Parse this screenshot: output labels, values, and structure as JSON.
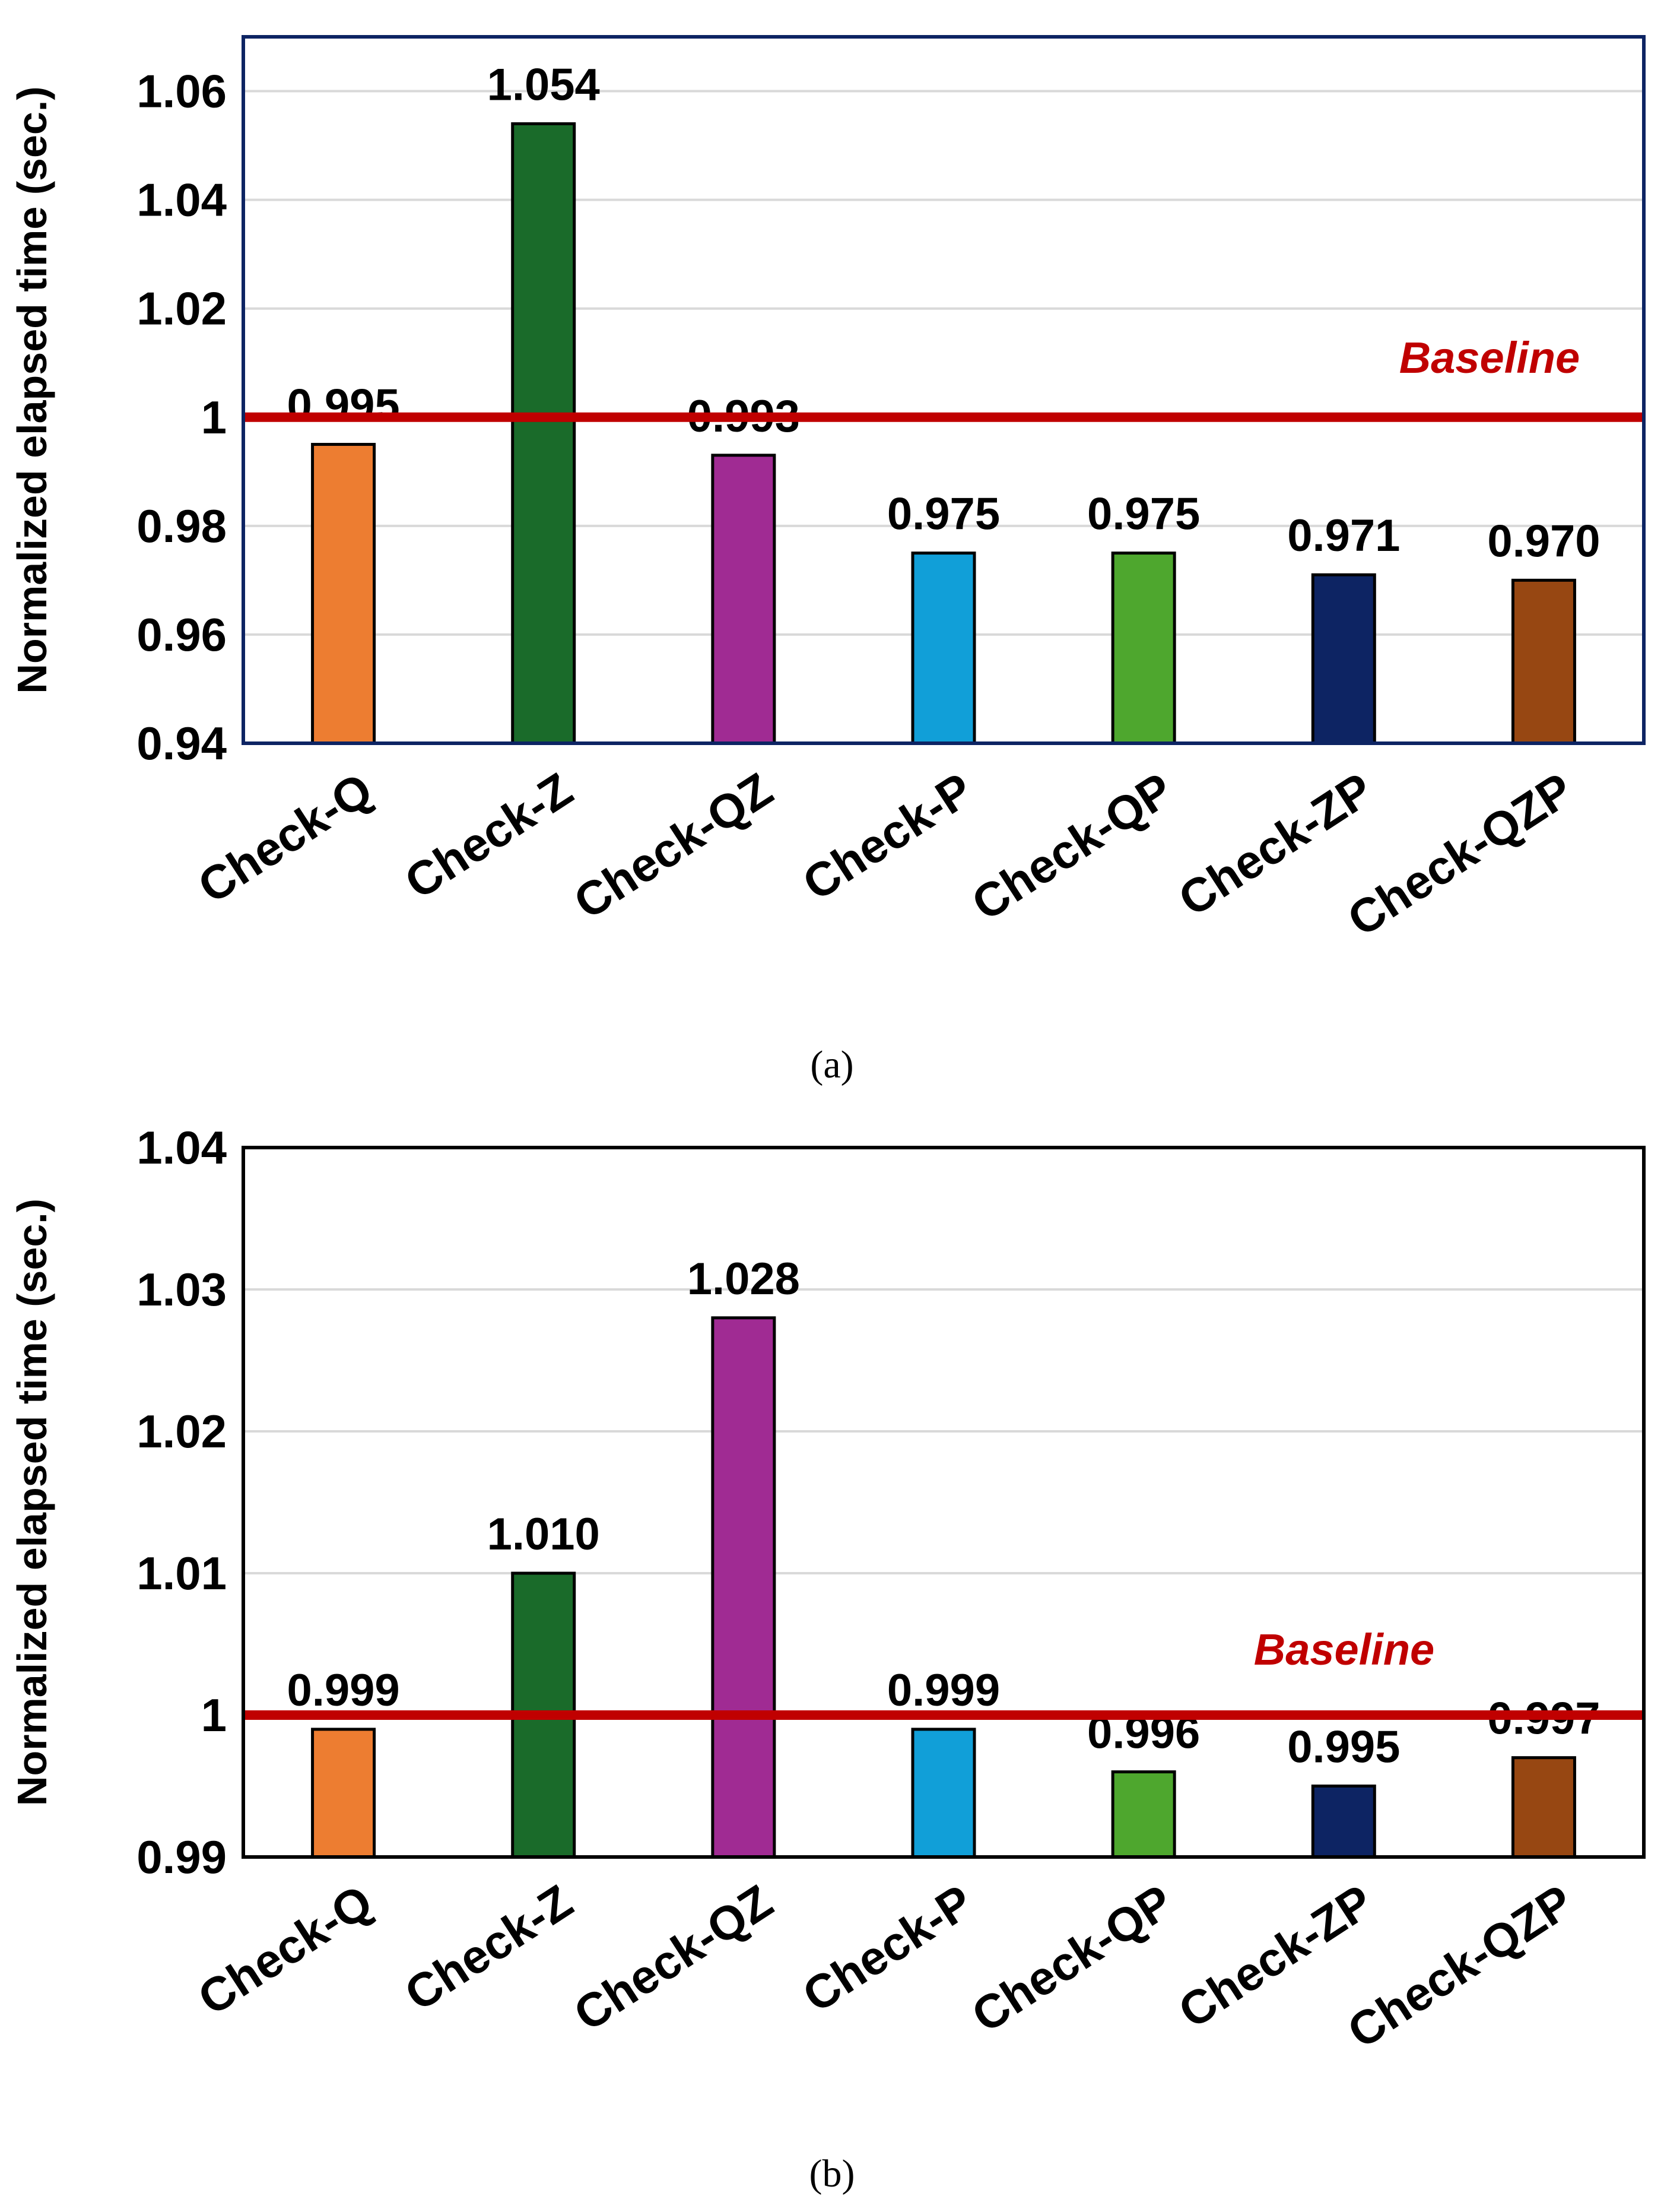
{
  "chart_data": [
    {
      "type": "bar",
      "caption": "(a)",
      "ylabel": "Normalized elapsed time (sec.)",
      "categories": [
        "Check-Q",
        "Check-Z",
        "Check-QZ",
        "Check-P",
        "Check-QP",
        "Check-ZP",
        "Check-QZP"
      ],
      "values": [
        0.995,
        1.054,
        0.993,
        0.975,
        0.975,
        0.971,
        0.97
      ],
      "value_labels": [
        "0.995",
        "1.054",
        "0.993",
        "0.975",
        "0.975",
        "0.971",
        "0.970"
      ],
      "colors": [
        "#ed7d31",
        "#1a6b2a",
        "#a02b93",
        "#119fd8",
        "#4ea72e",
        "#0d2463",
        "#974712"
      ],
      "ylim": [
        0.94,
        1.07
      ],
      "yticks": [
        0.94,
        0.96,
        0.98,
        1.0,
        1.02,
        1.04,
        1.06
      ],
      "ytick_labels": [
        "0.94",
        "0.96",
        "0.98",
        "1",
        "1.02",
        "1.04",
        "1.06"
      ],
      "frame_color": "#0d2463",
      "grid": true,
      "baseline": {
        "value": 1.0,
        "label": "Baseline",
        "color": "#c00000"
      }
    },
    {
      "type": "bar",
      "caption": "(b)",
      "ylabel": "Normalized elapsed time (sec.)",
      "categories": [
        "Check-Q",
        "Check-Z",
        "Check-QZ",
        "Check-P",
        "Check-QP",
        "Check-ZP",
        "Check-QZP"
      ],
      "values": [
        0.999,
        1.01,
        1.028,
        0.999,
        0.996,
        0.995,
        0.997
      ],
      "value_labels": [
        "0.999",
        "1.010",
        "1.028",
        "0.999",
        "0.996",
        "0.995",
        "0.997"
      ],
      "colors": [
        "#ed7d31",
        "#1a6b2a",
        "#a02b93",
        "#119fd8",
        "#4ea72e",
        "#0d2463",
        "#974712"
      ],
      "ylim": [
        0.99,
        1.04
      ],
      "yticks": [
        0.99,
        1.0,
        1.01,
        1.02,
        1.03,
        1.04
      ],
      "ytick_labels": [
        "0.99",
        "1",
        "1.01",
        "1.02",
        "1.03",
        "1.04"
      ],
      "frame_color": "#000000",
      "grid": true,
      "baseline": {
        "value": 1.0,
        "label": "Baseline",
        "color": "#c00000"
      }
    }
  ]
}
